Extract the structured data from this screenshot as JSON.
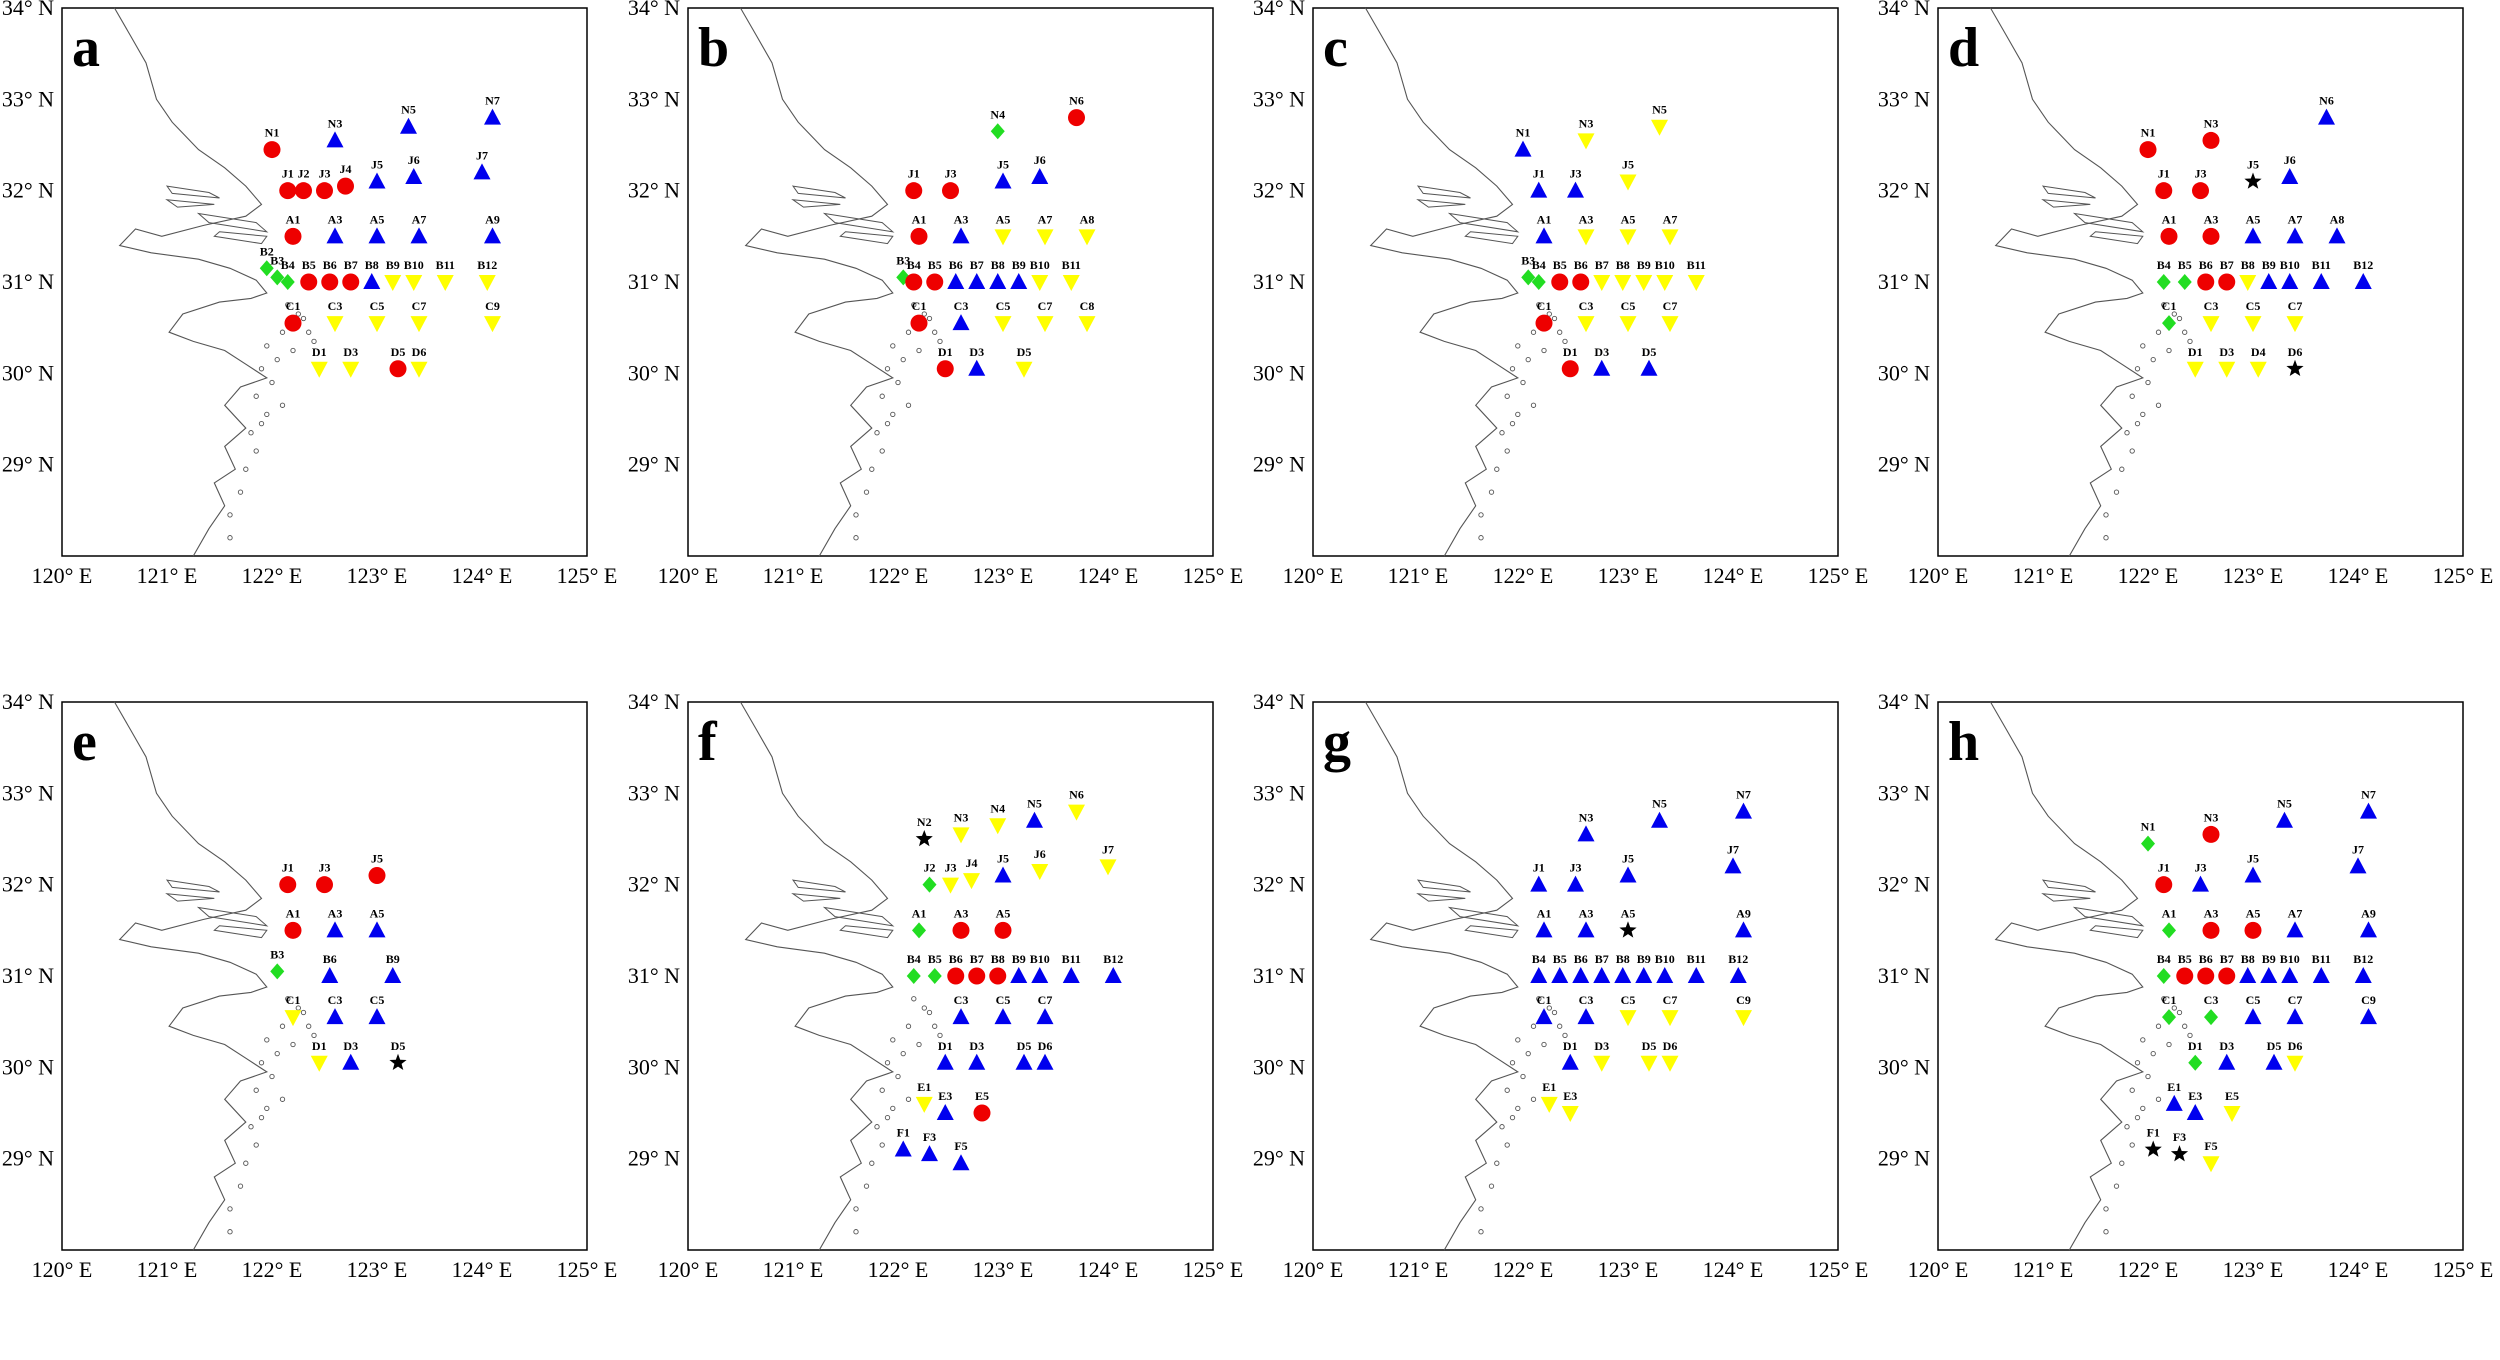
{
  "figure": {
    "lat_labels": [
      "34° N",
      "33° N",
      "32° N",
      "31° N",
      "30° N",
      "29° N"
    ],
    "lon_labels": [
      "120° E",
      "121° E",
      "122° E",
      "123° E",
      "124° E",
      "125° E"
    ],
    "lon_range": [
      120,
      125
    ],
    "lat_range": [
      28,
      34
    ],
    "colors": {
      "red": "#ee0000",
      "blue": "#0000ee",
      "yellow": "#ffff00",
      "green": "#22dd22",
      "black": "#000000",
      "coast": "#555555"
    },
    "legend_symbols": {
      "red": "circle",
      "blue": "triangle-up",
      "yellow": "triangle-down",
      "green": "diamond",
      "black": "star"
    }
  },
  "coords": {
    "N1": [
      122.0,
      32.45
    ],
    "N2": [
      122.25,
      32.5
    ],
    "N3": [
      122.6,
      32.55
    ],
    "N4": [
      122.95,
      32.65
    ],
    "N5": [
      123.3,
      32.7
    ],
    "N6": [
      123.7,
      32.8
    ],
    "N7": [
      124.1,
      32.8
    ],
    "J1": [
      122.15,
      32.0
    ],
    "J2": [
      122.3,
      32.0
    ],
    "J3": [
      122.5,
      32.0
    ],
    "J4": [
      122.7,
      32.05
    ],
    "J5": [
      123.0,
      32.1
    ],
    "J6": [
      123.35,
      32.15
    ],
    "J7": [
      124.0,
      32.2
    ],
    "A1": [
      122.2,
      31.5
    ],
    "A3": [
      122.6,
      31.5
    ],
    "A5": [
      123.0,
      31.5
    ],
    "A7": [
      123.4,
      31.5
    ],
    "A8": [
      123.8,
      31.5
    ],
    "A9": [
      124.1,
      31.5
    ],
    "B2": [
      121.95,
      31.15
    ],
    "B3": [
      122.05,
      31.05
    ],
    "B4": [
      122.15,
      31.0
    ],
    "B5": [
      122.35,
      31.0
    ],
    "B6": [
      122.55,
      31.0
    ],
    "B7": [
      122.75,
      31.0
    ],
    "B8": [
      122.95,
      31.0
    ],
    "B9": [
      123.15,
      31.0
    ],
    "B10": [
      123.35,
      31.0
    ],
    "B11": [
      123.65,
      31.0
    ],
    "B12": [
      124.05,
      31.0
    ],
    "C1": [
      122.2,
      30.55
    ],
    "C3": [
      122.6,
      30.55
    ],
    "C5": [
      123.0,
      30.55
    ],
    "C7": [
      123.4,
      30.55
    ],
    "C8": [
      123.8,
      30.55
    ],
    "C9": [
      124.1,
      30.55
    ],
    "D1": [
      122.45,
      30.05
    ],
    "D3": [
      122.75,
      30.05
    ],
    "D4": [
      123.05,
      30.05
    ],
    "D5": [
      123.2,
      30.05
    ],
    "D6": [
      123.4,
      30.05
    ],
    "E1": [
      122.25,
      29.6
    ],
    "E3": [
      122.45,
      29.5
    ],
    "E5": [
      122.8,
      29.5
    ],
    "F1": [
      122.05,
      29.1
    ],
    "F3": [
      122.3,
      29.05
    ],
    "F5": [
      122.6,
      28.95
    ]
  },
  "panels": [
    {
      "label": "a",
      "stations": [
        [
          "N1",
          "red"
        ],
        [
          "N3",
          "blue"
        ],
        [
          "N5",
          "blue"
        ],
        [
          "N7",
          "blue"
        ],
        [
          "J1",
          "red"
        ],
        [
          "J2",
          "red"
        ],
        [
          "J3",
          "red"
        ],
        [
          "J4",
          "red"
        ],
        [
          "J5",
          "blue"
        ],
        [
          "J6",
          "blue"
        ],
        [
          "J7",
          "blue"
        ],
        [
          "A1",
          "red"
        ],
        [
          "A3",
          "blue"
        ],
        [
          "A5",
          "blue"
        ],
        [
          "A7",
          "blue"
        ],
        [
          "A9",
          "blue"
        ],
        [
          "B2",
          "green"
        ],
        [
          "B3",
          "green"
        ],
        [
          "B4",
          "green"
        ],
        [
          "B5",
          "red"
        ],
        [
          "B6",
          "red"
        ],
        [
          "B7",
          "red"
        ],
        [
          "B8",
          "blue"
        ],
        [
          "B9",
          "yellow"
        ],
        [
          "B10",
          "yellow"
        ],
        [
          "B11",
          "yellow"
        ],
        [
          "B12",
          "yellow"
        ],
        [
          "C1",
          "red"
        ],
        [
          "C3",
          "yellow"
        ],
        [
          "C5",
          "yellow"
        ],
        [
          "C7",
          "yellow"
        ],
        [
          "C9",
          "yellow"
        ],
        [
          "D1",
          "yellow"
        ],
        [
          "D3",
          "yellow"
        ],
        [
          "D5",
          "red"
        ],
        [
          "D6",
          "yellow"
        ]
      ]
    },
    {
      "label": "b",
      "stations": [
        [
          "N4",
          "green"
        ],
        [
          "N6",
          "red"
        ],
        [
          "J1",
          "red"
        ],
        [
          "J3",
          "red"
        ],
        [
          "J5",
          "blue"
        ],
        [
          "J6",
          "blue"
        ],
        [
          "A1",
          "red"
        ],
        [
          "A3",
          "blue"
        ],
        [
          "A5",
          "yellow"
        ],
        [
          "A7",
          "yellow"
        ],
        [
          "A8",
          "yellow"
        ],
        [
          "B3",
          "green"
        ],
        [
          "B4",
          "red"
        ],
        [
          "B5",
          "red"
        ],
        [
          "B6",
          "blue"
        ],
        [
          "B7",
          "blue"
        ],
        [
          "B8",
          "blue"
        ],
        [
          "B9",
          "blue"
        ],
        [
          "B10",
          "yellow"
        ],
        [
          "B11",
          "yellow"
        ],
        [
          "C1",
          "red"
        ],
        [
          "C3",
          "blue"
        ],
        [
          "C5",
          "yellow"
        ],
        [
          "C7",
          "yellow"
        ],
        [
          "C8",
          "yellow"
        ],
        [
          "D1",
          "red"
        ],
        [
          "D3",
          "blue"
        ],
        [
          "D5",
          "yellow"
        ]
      ]
    },
    {
      "label": "c",
      "stations": [
        [
          "N1",
          "blue"
        ],
        [
          "N3",
          "yellow"
        ],
        [
          "N5",
          "yellow"
        ],
        [
          "J1",
          "blue"
        ],
        [
          "J3",
          "blue"
        ],
        [
          "J5",
          "yellow"
        ],
        [
          "A1",
          "blue"
        ],
        [
          "A3",
          "yellow"
        ],
        [
          "A5",
          "yellow"
        ],
        [
          "A7",
          "yellow"
        ],
        [
          "B3",
          "green"
        ],
        [
          "B4",
          "green"
        ],
        [
          "B5",
          "red"
        ],
        [
          "B6",
          "red"
        ],
        [
          "B7",
          "yellow"
        ],
        [
          "B8",
          "yellow"
        ],
        [
          "B9",
          "yellow"
        ],
        [
          "B10",
          "yellow"
        ],
        [
          "B11",
          "yellow"
        ],
        [
          "C1",
          "red"
        ],
        [
          "C3",
          "yellow"
        ],
        [
          "C5",
          "yellow"
        ],
        [
          "C7",
          "yellow"
        ],
        [
          "D1",
          "red"
        ],
        [
          "D3",
          "blue"
        ],
        [
          "D5",
          "blue"
        ]
      ]
    },
    {
      "label": "d",
      "stations": [
        [
          "N1",
          "red"
        ],
        [
          "N3",
          "red"
        ],
        [
          "N6",
          "blue"
        ],
        [
          "J1",
          "red"
        ],
        [
          "J3",
          "red"
        ],
        [
          "J5",
          "black"
        ],
        [
          "J6",
          "blue"
        ],
        [
          "A1",
          "red"
        ],
        [
          "A3",
          "red"
        ],
        [
          "A5",
          "blue"
        ],
        [
          "A7",
          "blue"
        ],
        [
          "A8",
          "blue"
        ],
        [
          "B4",
          "green"
        ],
        [
          "B5",
          "green"
        ],
        [
          "B6",
          "red"
        ],
        [
          "B7",
          "red"
        ],
        [
          "B8",
          "yellow"
        ],
        [
          "B9",
          "blue"
        ],
        [
          "B10",
          "blue"
        ],
        [
          "B11",
          "blue"
        ],
        [
          "B12",
          "blue"
        ],
        [
          "C1",
          "green"
        ],
        [
          "C3",
          "yellow"
        ],
        [
          "C5",
          "yellow"
        ],
        [
          "C7",
          "yellow"
        ],
        [
          "D1",
          "yellow"
        ],
        [
          "D3",
          "yellow"
        ],
        [
          "D4",
          "yellow"
        ],
        [
          "D6",
          "black"
        ]
      ]
    },
    {
      "label": "e",
      "stations": [
        [
          "J1",
          "red"
        ],
        [
          "J3",
          "red"
        ],
        [
          "J5",
          "red"
        ],
        [
          "A1",
          "red"
        ],
        [
          "A3",
          "blue"
        ],
        [
          "A5",
          "blue"
        ],
        [
          "B3",
          "green"
        ],
        [
          "B6",
          "blue"
        ],
        [
          "B9",
          "blue"
        ],
        [
          "C1",
          "yellow"
        ],
        [
          "C3",
          "blue"
        ],
        [
          "C5",
          "blue"
        ],
        [
          "D1",
          "yellow"
        ],
        [
          "D3",
          "blue"
        ],
        [
          "D5",
          "black"
        ]
      ]
    },
    {
      "label": "f",
      "stations": [
        [
          "N2",
          "black"
        ],
        [
          "N3",
          "yellow"
        ],
        [
          "N4",
          "yellow"
        ],
        [
          "N5",
          "blue"
        ],
        [
          "N6",
          "yellow"
        ],
        [
          "J2",
          "green"
        ],
        [
          "J3",
          "yellow"
        ],
        [
          "J4",
          "yellow"
        ],
        [
          "J5",
          "blue"
        ],
        [
          "J6",
          "yellow"
        ],
        [
          "J7",
          "yellow"
        ],
        [
          "A1",
          "green"
        ],
        [
          "A3",
          "red"
        ],
        [
          "A5",
          "red"
        ],
        [
          "B4",
          "green"
        ],
        [
          "B5",
          "green"
        ],
        [
          "B6",
          "red"
        ],
        [
          "B7",
          "red"
        ],
        [
          "B8",
          "red"
        ],
        [
          "B9",
          "blue"
        ],
        [
          "B10",
          "blue"
        ],
        [
          "B11",
          "blue"
        ],
        [
          "B12",
          "blue"
        ],
        [
          "C3",
          "blue"
        ],
        [
          "C5",
          "blue"
        ],
        [
          "C7",
          "blue"
        ],
        [
          "D1",
          "blue"
        ],
        [
          "D3",
          "blue"
        ],
        [
          "D5",
          "blue"
        ],
        [
          "D6",
          "blue"
        ],
        [
          "E1",
          "yellow"
        ],
        [
          "E3",
          "blue"
        ],
        [
          "E5",
          "red"
        ],
        [
          "F1",
          "blue"
        ],
        [
          "F3",
          "blue"
        ],
        [
          "F5",
          "blue"
        ]
      ]
    },
    {
      "label": "g",
      "stations": [
        [
          "N3",
          "blue"
        ],
        [
          "N5",
          "blue"
        ],
        [
          "N7",
          "blue"
        ],
        [
          "J1",
          "blue"
        ],
        [
          "J3",
          "blue"
        ],
        [
          "J5",
          "blue"
        ],
        [
          "J7",
          "blue"
        ],
        [
          "A1",
          "blue"
        ],
        [
          "A3",
          "blue"
        ],
        [
          "A5",
          "black"
        ],
        [
          "A9",
          "blue"
        ],
        [
          "B4",
          "blue"
        ],
        [
          "B5",
          "blue"
        ],
        [
          "B6",
          "blue"
        ],
        [
          "B7",
          "blue"
        ],
        [
          "B8",
          "blue"
        ],
        [
          "B9",
          "blue"
        ],
        [
          "B10",
          "blue"
        ],
        [
          "B11",
          "blue"
        ],
        [
          "B12",
          "blue"
        ],
        [
          "C1",
          "blue"
        ],
        [
          "C3",
          "blue"
        ],
        [
          "C5",
          "yellow"
        ],
        [
          "C7",
          "yellow"
        ],
        [
          "C9",
          "yellow"
        ],
        [
          "D1",
          "blue"
        ],
        [
          "D3",
          "yellow"
        ],
        [
          "D5",
          "yellow"
        ],
        [
          "D6",
          "yellow"
        ],
        [
          "E1",
          "yellow"
        ],
        [
          "E3",
          "yellow"
        ]
      ]
    },
    {
      "label": "h",
      "stations": [
        [
          "N1",
          "green"
        ],
        [
          "N3",
          "red"
        ],
        [
          "N5",
          "blue"
        ],
        [
          "N7",
          "blue"
        ],
        [
          "J1",
          "red"
        ],
        [
          "J3",
          "blue"
        ],
        [
          "J5",
          "blue"
        ],
        [
          "J7",
          "blue"
        ],
        [
          "A1",
          "green"
        ],
        [
          "A3",
          "red"
        ],
        [
          "A5",
          "red"
        ],
        [
          "A7",
          "blue"
        ],
        [
          "A9",
          "blue"
        ],
        [
          "B4",
          "green"
        ],
        [
          "B5",
          "red"
        ],
        [
          "B6",
          "red"
        ],
        [
          "B7",
          "red"
        ],
        [
          "B8",
          "blue"
        ],
        [
          "B9",
          "blue"
        ],
        [
          "B10",
          "blue"
        ],
        [
          "B11",
          "blue"
        ],
        [
          "B12",
          "blue"
        ],
        [
          "C1",
          "green"
        ],
        [
          "C3",
          "green"
        ],
        [
          "C5",
          "blue"
        ],
        [
          "C7",
          "blue"
        ],
        [
          "C9",
          "blue"
        ],
        [
          "D1",
          "green"
        ],
        [
          "D3",
          "blue"
        ],
        [
          "D5",
          "blue"
        ],
        [
          "D6",
          "yellow"
        ],
        [
          "E1",
          "blue"
        ],
        [
          "E3",
          "blue"
        ],
        [
          "E5",
          "yellow"
        ],
        [
          "F1",
          "black"
        ],
        [
          "F3",
          "black"
        ],
        [
          "F5",
          "yellow"
        ]
      ]
    }
  ]
}
